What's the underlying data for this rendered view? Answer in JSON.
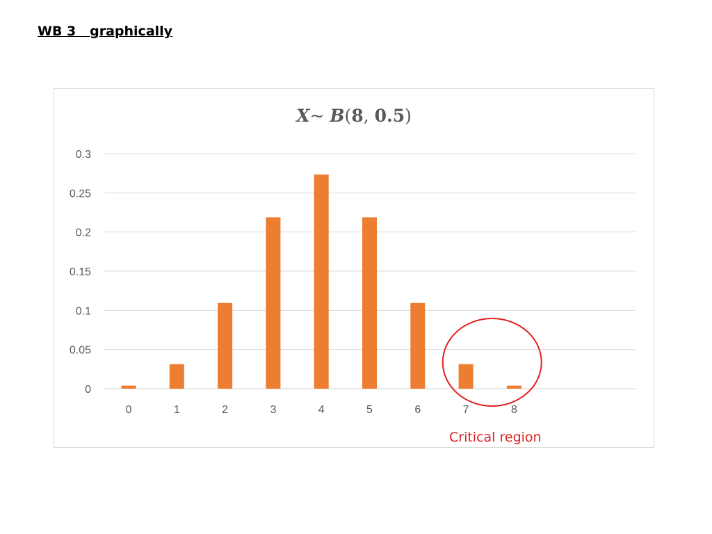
{
  "slide": {
    "heading": "WB 3   graphically"
  },
  "chart_data": {
    "type": "bar",
    "title_parts": {
      "variable": "X",
      "tilde": "~ ",
      "dist": "B",
      "n": "8",
      "sep": ", ",
      "p": "0.5"
    },
    "categories": [
      "0",
      "1",
      "2",
      "3",
      "4",
      "5",
      "6",
      "7",
      "8"
    ],
    "values": [
      0.0039,
      0.0313,
      0.1094,
      0.2188,
      0.2734,
      0.2188,
      0.1094,
      0.0313,
      0.0039
    ],
    "y_ticks": [
      "0",
      "0.05",
      "0.1",
      "0.15",
      "0.2",
      "0.25",
      "0.3"
    ],
    "ylim": [
      0,
      0.3
    ],
    "grid": true,
    "bar_color": "#ed7d31",
    "annotation": {
      "text": "Critical region",
      "color": "#e02020",
      "highlighted_categories": [
        "7",
        "8"
      ]
    }
  }
}
